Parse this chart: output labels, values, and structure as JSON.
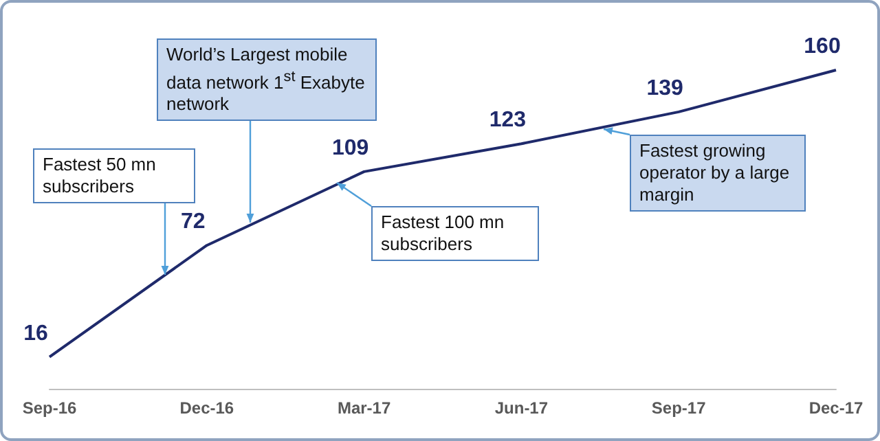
{
  "chart_data": {
    "type": "line",
    "categories": [
      "Sep-16",
      "Dec-16",
      "Mar-17",
      "Jun-17",
      "Sep-17",
      "Dec-17"
    ],
    "series": [
      {
        "color": "#1f2a6b",
        "values": [
          16,
          72,
          109,
          123,
          139,
          160
        ]
      }
    ],
    "data_labels": true,
    "marker": "none",
    "line_style": "solid",
    "grid": false,
    "tick_labels": "x",
    "annotations": [
      "Fastest 50 mn subscribers",
      "World’s Largest mobile data network 1$^{st}$ Exabyte network",
      "Fastest 100 mn subscribers",
      "Fastest growing operator by a large margin"
    ]
  }
}
